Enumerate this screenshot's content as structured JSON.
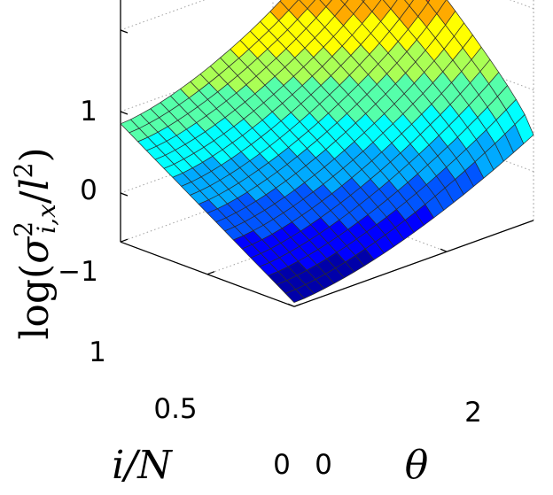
{
  "chart_data": {
    "type": "surface",
    "colormap": "jet",
    "grid": true,
    "x_axis": {
      "label": "θ",
      "range": [
        0,
        3.14
      ],
      "ticks": [
        0,
        2
      ],
      "tick_labels": [
        "0",
        "2"
      ]
    },
    "y_axis": {
      "label": "i/N",
      "range": [
        0,
        1
      ],
      "ticks": [
        0,
        0.5,
        1
      ],
      "tick_labels": [
        "0",
        "0.5",
        "1"
      ]
    },
    "z_axis": {
      "label": "log(σ²_{i,x}/l²)",
      "range": [
        -1.6,
        1.6
      ],
      "ticks": [
        -1,
        0,
        1
      ],
      "tick_labels": [
        "−1",
        "0",
        "1"
      ]
    },
    "surface": {
      "description_values": "z ≈ log(σ²_{i,x}/l²) as a function of θ and i/N",
      "corners": [
        {
          "theta": 0,
          "iN": 0,
          "z": -1.55
        },
        {
          "theta": 0,
          "iN": 1,
          "z": -0.15
        },
        {
          "theta": 3.14,
          "iN": 0,
          "z": -0.55
        },
        {
          "theta": 3.14,
          "iN": 1,
          "z": 1.6
        }
      ]
    }
  }
}
